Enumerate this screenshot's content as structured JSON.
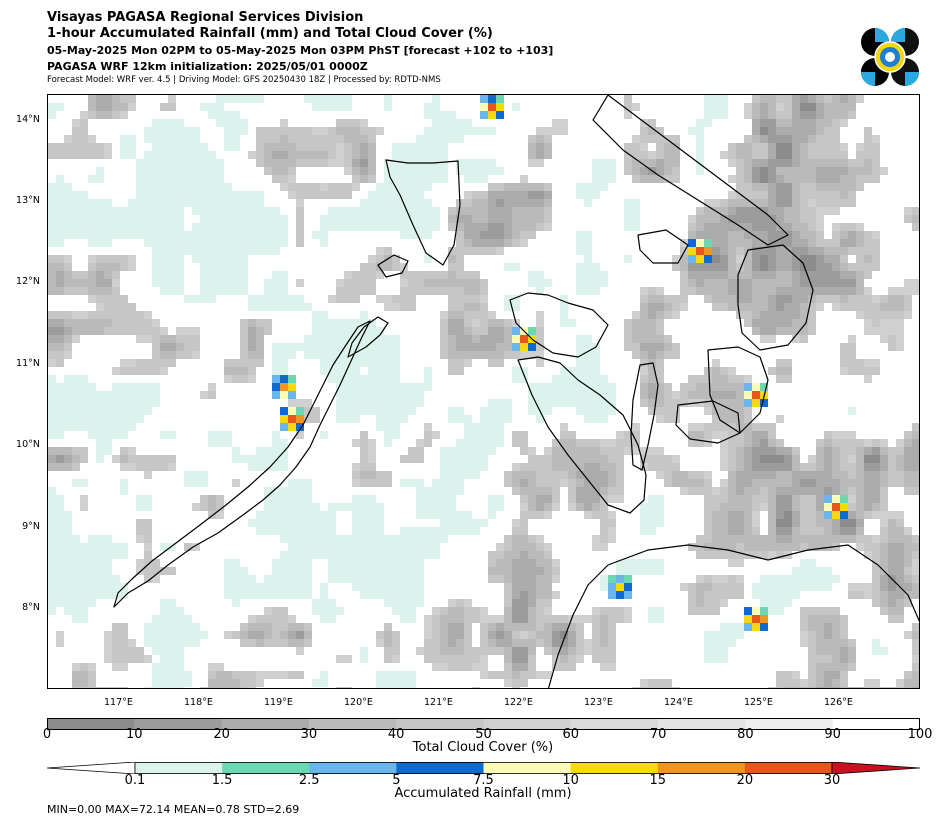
{
  "header": {
    "line1": "Visayas PAGASA Regional Services Division",
    "line2": "1-hour Accumulated Rainfall (mm) and Total Cloud Cover (%)",
    "line3": "05-May-2025 Mon 02PM to 05-May-2025 Mon 03PM PhST [forecast +102 to +103]",
    "line4": "PAGASA WRF 12km initialization: 2025/05/01 0000Z",
    "line5": "Forecast Model: WRF ver. 4.5 | Driving Model: GFS 20250430 18Z | Processed by: RDTD-NMS"
  },
  "map": {
    "lat_labels": [
      "14°N",
      "13°N",
      "12°N",
      "11°N",
      "10°N",
      "9°N",
      "8°N"
    ],
    "lon_labels": [
      "117°E",
      "118°E",
      "119°E",
      "120°E",
      "121°E",
      "122°E",
      "123°E",
      "124°E",
      "125°E",
      "126°E"
    ],
    "extent": {
      "lon": [
        116.2,
        127.0
      ],
      "lat": [
        7.05,
        14.35
      ]
    },
    "rain_hotspots": [
      {
        "lon": 119.25,
        "lat": 10.35,
        "mm": 25
      },
      {
        "lon": 119.1,
        "lat": 10.8,
        "mm": 18
      },
      {
        "lon": 122.05,
        "lat": 11.4,
        "mm": 22
      },
      {
        "lon": 124.25,
        "lat": 12.45,
        "mm": 25
      },
      {
        "lon": 124.95,
        "lat": 10.65,
        "mm": 22
      },
      {
        "lon": 125.95,
        "lat": 9.3,
        "mm": 22
      },
      {
        "lon": 125.0,
        "lat": 7.95,
        "mm": 25
      },
      {
        "lon": 123.25,
        "lat": 8.35,
        "mm": 12
      },
      {
        "lon": 121.7,
        "lat": 14.2,
        "mm": 20
      }
    ]
  },
  "cloud_colorbar": {
    "caption": "Total Cloud Cover (%)",
    "ticks": [
      "0",
      "10",
      "20",
      "30",
      "40",
      "50",
      "60",
      "70",
      "80",
      "90",
      "100"
    ],
    "colors": [
      "#8c8c8c",
      "#9c9c9c",
      "#ababab",
      "#bababa",
      "#c6c6c6",
      "#d0d0d0",
      "#dadada",
      "#e4e4e4",
      "#eeeeee",
      "#ffffff"
    ]
  },
  "rain_colorbar": {
    "caption": "Accumulated Rainfall (mm)",
    "ticks": [
      "0.1",
      "1.5",
      "2.5",
      "5",
      "7.5",
      "10",
      "15",
      "20",
      "30"
    ],
    "colors": [
      "#dbf3ec",
      "#6cd7b5",
      "#6bb5ef",
      "#0d6bd0",
      "#fefbb4",
      "#f8d90c",
      "#f2951e",
      "#e8561b",
      "#c8101e"
    ]
  },
  "stats": {
    "text": "MIN=0.00   MAX=72.14   MEAN=0.78   STD=2.69"
  }
}
